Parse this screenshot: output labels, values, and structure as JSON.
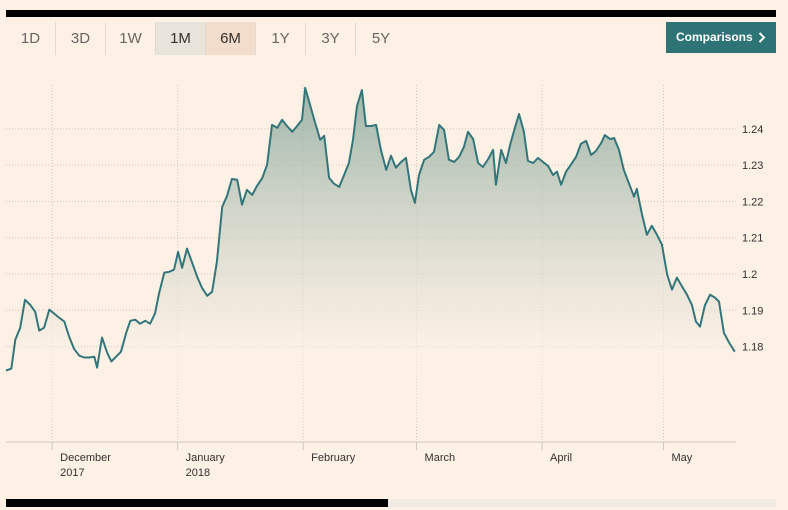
{
  "ranges": [
    "1D",
    "3D",
    "1W",
    "1M",
    "6M",
    "1Y",
    "3Y",
    "5Y"
  ],
  "comparisons": "Comparisons",
  "chart_data": {
    "type": "line",
    "color": "#33767a",
    "grid": true,
    "ylim": [
      1.1537,
      1.2521
    ],
    "yticks": [
      1.18,
      1.19,
      1.2,
      1.21,
      1.22,
      1.23,
      1.24
    ],
    "xlim": [
      -11.4,
      168.9
    ],
    "xticks": [
      {
        "value": 0,
        "label": "December",
        "sublabel": "2017"
      },
      {
        "value": 31,
        "label": "January",
        "sublabel": "2018"
      },
      {
        "value": 62,
        "label": "February"
      },
      {
        "value": 90,
        "label": "March"
      },
      {
        "value": 121,
        "label": "April"
      },
      {
        "value": 151,
        "label": "May"
      }
    ],
    "x": [
      -11.4,
      -10.1,
      -9.1,
      -7.9,
      -6.7,
      -5.4,
      -4.2,
      -3.2,
      -2.0,
      -0.7,
      0.5,
      1.7,
      3.0,
      4.2,
      5.4,
      6.7,
      7.9,
      9.1,
      10.4,
      11.1,
      12.3,
      13.6,
      14.6,
      15.8,
      17.0,
      18.3,
      19.3,
      20.5,
      21.7,
      23.0,
      24.2,
      25.4,
      26.4,
      27.7,
      28.9,
      30.1,
      31.1,
      32.1,
      33.3,
      34.6,
      35.8,
      37.0,
      38.3,
      39.5,
      40.7,
      42.0,
      43.2,
      44.4,
      45.7,
      46.9,
      48.1,
      49.4,
      50.6,
      51.9,
      53.1,
      54.3,
      55.6,
      56.8,
      58.0,
      59.3,
      60.5,
      61.7,
      62.5,
      63.7,
      64.9,
      66.2,
      67.2,
      68.4,
      69.6,
      70.9,
      72.1,
      73.3,
      74.3,
      75.3,
      76.5,
      77.5,
      78.8,
      80.0,
      81.2,
      82.5,
      83.7,
      84.9,
      86.2,
      87.4,
      88.6,
      89.6,
      90.6,
      91.9,
      93.1,
      94.3,
      95.6,
      96.8,
      98.0,
      99.3,
      100.5,
      101.7,
      102.7,
      104.0,
      105.2,
      106.4,
      107.7,
      108.9,
      109.6,
      110.9,
      112.1,
      113.1,
      114.3,
      115.3,
      116.5,
      117.5,
      118.8,
      120.0,
      121.2,
      122.5,
      123.7,
      124.7,
      125.7,
      126.9,
      128.1,
      129.4,
      130.6,
      131.9,
      133.1,
      134.3,
      135.6,
      136.5,
      137.8,
      138.8,
      140.0,
      141.2,
      142.5,
      143.7,
      144.4,
      145.7,
      146.9,
      148.1,
      149.4,
      150.6,
      151.9,
      153.1,
      154.3,
      155.6,
      156.8,
      158.0,
      159.0,
      160.0,
      161.2,
      162.5,
      163.7,
      164.7,
      165.9,
      167.2,
      168.6
    ],
    "values": [
      1.1734,
      1.1739,
      1.1819,
      1.1852,
      1.1929,
      1.1915,
      1.1896,
      1.1844,
      1.1852,
      1.1902,
      1.1891,
      1.188,
      1.1869,
      1.1827,
      1.1794,
      1.1775,
      1.177,
      1.177,
      1.1772,
      1.1742,
      1.1825,
      1.1783,
      1.1759,
      1.1772,
      1.1786,
      1.1838,
      1.1871,
      1.1874,
      1.1863,
      1.1871,
      1.1863,
      1.1891,
      1.1946,
      1.2004,
      1.2006,
      1.2012,
      1.2061,
      1.2017,
      1.207,
      1.2031,
      1.1993,
      1.1962,
      1.194,
      1.1951,
      1.2034,
      1.2185,
      1.2216,
      1.2262,
      1.226,
      1.2191,
      1.2232,
      1.2218,
      1.2243,
      1.2265,
      1.2301,
      1.2411,
      1.2403,
      1.2425,
      1.2408,
      1.2392,
      1.2408,
      1.2425,
      1.2513,
      1.2466,
      1.2419,
      1.237,
      1.2381,
      1.2265,
      1.2249,
      1.224,
      1.2273,
      1.2306,
      1.237,
      1.2463,
      1.2507,
      1.2408,
      1.2408,
      1.2411,
      1.2342,
      1.2287,
      1.2326,
      1.2293,
      1.2309,
      1.232,
      1.2232,
      1.2196,
      1.2273,
      1.2315,
      1.2323,
      1.2337,
      1.2411,
      1.2397,
      1.2315,
      1.2309,
      1.2323,
      1.235,
      1.2392,
      1.2372,
      1.2306,
      1.2295,
      1.2317,
      1.2342,
      1.2246,
      1.2342,
      1.2306,
      1.2356,
      1.2403,
      1.2441,
      1.2394,
      1.2312,
      1.2306,
      1.232,
      1.2309,
      1.2298,
      1.2273,
      1.2282,
      1.2246,
      1.2282,
      1.2301,
      1.2323,
      1.2359,
      1.2367,
      1.2328,
      1.2339,
      1.2361,
      1.2383,
      1.2372,
      1.2375,
      1.2342,
      1.2287,
      1.2249,
      1.2213,
      1.2235,
      1.2163,
      1.2108,
      1.2133,
      1.2108,
      1.2081,
      1.1998,
      1.1957,
      1.199,
      1.1965,
      1.1943,
      1.1915,
      1.1869,
      1.1855,
      1.1913,
      1.1943,
      1.1935,
      1.1924,
      1.1838,
      1.1811,
      1.1786
    ]
  }
}
